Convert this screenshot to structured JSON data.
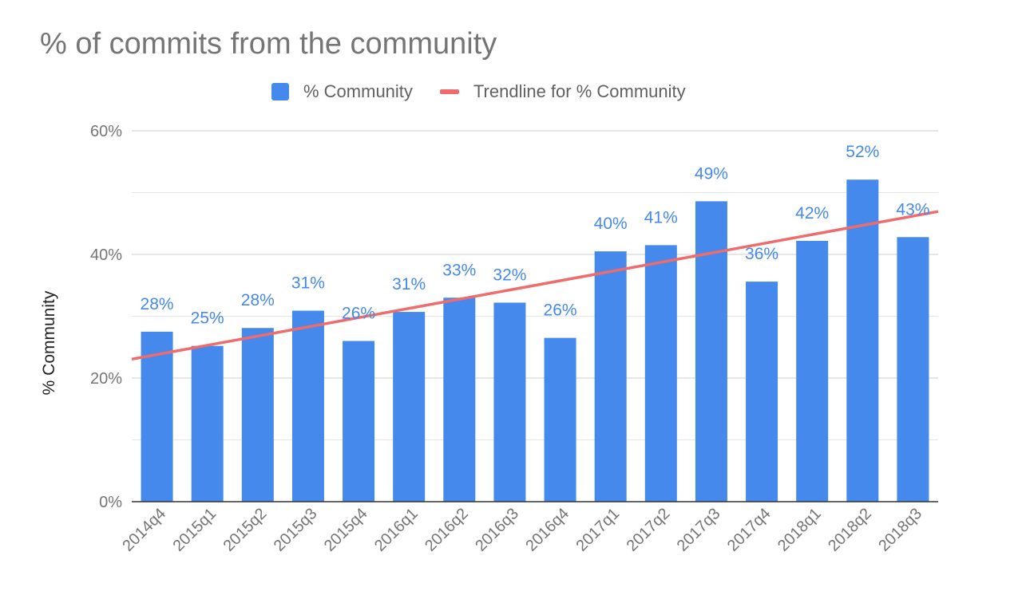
{
  "chart_data": {
    "type": "bar",
    "title": "% of commits from the community",
    "ylabel": "% Community",
    "xlabel": "",
    "ylim": [
      0,
      60
    ],
    "yticks": [
      "0%",
      "20%",
      "40%",
      "60%"
    ],
    "ytick_values": [
      0,
      20,
      40,
      60
    ],
    "grid": true,
    "legend_position": "top",
    "categories": [
      "2014q4",
      "2015q1",
      "2015q2",
      "2015q3",
      "2015q4",
      "2016q1",
      "2016q2",
      "2016q3",
      "2016q4",
      "2017q1",
      "2017q2",
      "2017q3",
      "2017q4",
      "2018q1",
      "2018q2",
      "2018q3"
    ],
    "series": [
      {
        "name": "% Community",
        "type": "bar",
        "color": "#4589ec",
        "values": [
          27.5,
          25.2,
          28.1,
          30.9,
          26.0,
          30.7,
          33.0,
          32.2,
          26.5,
          40.5,
          41.5,
          48.6,
          35.6,
          42.2,
          52.1,
          42.8
        ],
        "data_labels": [
          "28%",
          "25%",
          "28%",
          "31%",
          "26%",
          "31%",
          "33%",
          "32%",
          "26%",
          "40%",
          "41%",
          "49%",
          "36%",
          "42%",
          "52%",
          "43%"
        ]
      },
      {
        "name": "Trendline for % Community",
        "type": "trendline",
        "color": "#f06b6b",
        "start_value": 23.8,
        "end_value": 46.2
      }
    ]
  }
}
